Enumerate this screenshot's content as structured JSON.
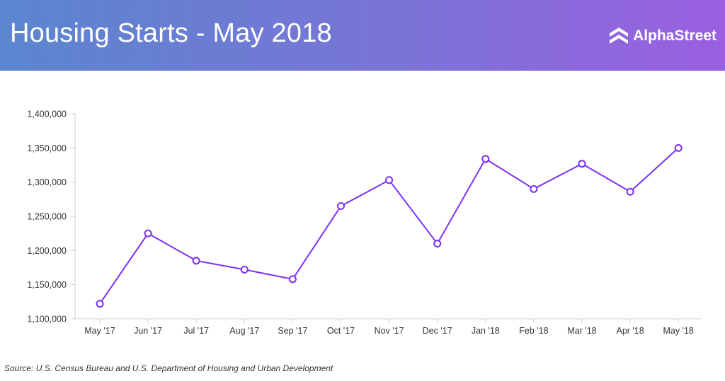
{
  "header": {
    "title": "Housing Starts - May 2018",
    "brand": "AlphaStreet",
    "brand_icon": "alphastreet-logo-icon"
  },
  "footer": {
    "source": "Source: U.S. Census Bureau and U.S. Department of Housing and Urban Development"
  },
  "colors": {
    "header_gradient_start": "#5b86cf",
    "header_gradient_end": "#9a5fe0",
    "line": "#7b2ff7",
    "axis": "#cccccc"
  },
  "chart_data": {
    "type": "line",
    "title": "",
    "xlabel": "",
    "ylabel": "",
    "categories": [
      "May '17",
      "Jun '17",
      "Jul '17",
      "Aug '17",
      "Sep '17",
      "Oct '17",
      "Nov '17",
      "Dec '17",
      "Jan '18",
      "Feb '18",
      "Mar '18",
      "Apr '18",
      "May '18"
    ],
    "values": [
      1122000,
      1225000,
      1185000,
      1172000,
      1158000,
      1265000,
      1303000,
      1210000,
      1334000,
      1290000,
      1327000,
      1286000,
      1350000
    ],
    "ylim": [
      1100000,
      1400000
    ],
    "yticks": [
      "1,100,000",
      "1,150,000",
      "1,200,000",
      "1,250,000",
      "1,300,000",
      "1,350,000",
      "1,400,000"
    ],
    "grid": false,
    "legend": "none"
  }
}
